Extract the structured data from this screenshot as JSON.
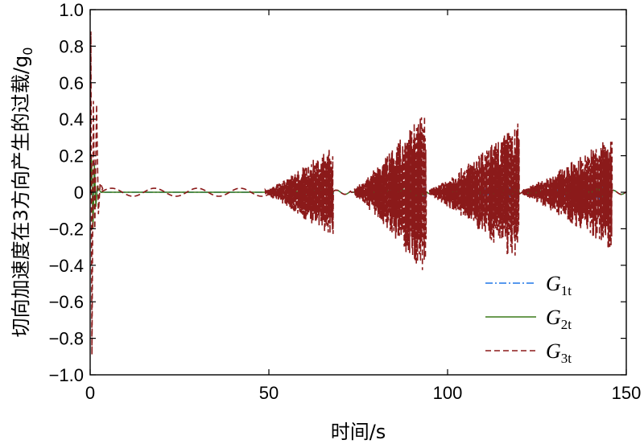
{
  "chart_data": {
    "type": "line",
    "xlabel": "时间/s",
    "ylabel": "切向加速度在3方向产生的过载/g",
    "ylabel_sub": "0",
    "xlim": [
      0,
      150
    ],
    "ylim": [
      -1.0,
      1.0
    ],
    "x_ticks": [
      0,
      50,
      100,
      150
    ],
    "x_tick_labels": [
      "0",
      "50",
      "100",
      "150"
    ],
    "y_ticks": [
      1.0,
      0.8,
      0.6,
      0.4,
      0.2,
      0,
      -0.2,
      -0.4,
      -0.6,
      -0.8,
      -1.0
    ],
    "y_tick_labels": [
      "1.0",
      "0.8",
      "0.6",
      "0.4",
      "0.2",
      "0",
      "−0.2",
      "−0.4",
      "−0.6",
      "−0.8",
      "−1.0"
    ],
    "grid": false,
    "legend": {
      "position": "bottom-right"
    },
    "series": [
      {
        "name": "G",
        "sub": "1t",
        "color": "#1f77e8",
        "dash": "dash-dot",
        "startup": {
          "t": [
            0,
            0.4,
            0.8,
            1.2,
            1.6,
            2.0,
            3.0
          ],
          "y": [
            0,
            0.12,
            -0.15,
            0.16,
            -0.06,
            0.02,
            0
          ]
        },
        "packets": [
          {
            "t_start": 50,
            "t_end": 68,
            "amp_end": 0.02
          },
          {
            "t_start": 75,
            "t_end": 94,
            "amp_end": 0.03
          },
          {
            "t_start": 96,
            "t_end": 120,
            "amp_end": 0.04
          },
          {
            "t_start": 122,
            "t_end": 145,
            "amp_end": 0.06
          }
        ],
        "baseline": 0
      },
      {
        "name": "G",
        "sub": "2t",
        "color": "#3a7a1a",
        "dash": "solid",
        "startup": {
          "t": [
            0,
            0.4,
            0.8,
            1.2,
            1.6,
            2.0,
            3.0
          ],
          "y": [
            0,
            0.18,
            -0.2,
            0.15,
            -0.08,
            0.03,
            0
          ]
        },
        "packets": [
          {
            "t_start": 50,
            "t_end": 68,
            "amp_end": 0.02
          },
          {
            "t_start": 75,
            "t_end": 94,
            "amp_end": 0.03
          },
          {
            "t_start": 96,
            "t_end": 120,
            "amp_end": 0.02
          },
          {
            "t_start": 122,
            "t_end": 145,
            "amp_end": 0.03
          }
        ],
        "baseline": 0
      },
      {
        "name": "G",
        "sub": "3t",
        "color": "#8b1a1a",
        "dash": "dashed",
        "startup": {
          "t": [
            0,
            0.2,
            0.5,
            0.9,
            1.3,
            1.8,
            2.3,
            2.8,
            3.5
          ],
          "y": [
            0,
            0.88,
            -0.89,
            0.5,
            -0.2,
            0.48,
            -0.12,
            0.05,
            0.02
          ]
        },
        "early_wave": {
          "t_start": 3,
          "t_end": 50,
          "amp": 0.022,
          "period": 12
        },
        "packets": [
          {
            "t_start": 49,
            "t_end": 68,
            "amp_end_pos": 0.26,
            "amp_end_neg": -0.27
          },
          {
            "t_start": 74,
            "t_end": 94,
            "amp_end_pos": 0.47,
            "amp_end_neg": -0.47
          },
          {
            "t_start": 95,
            "t_end": 120,
            "amp_end_pos": 0.39,
            "amp_end_neg": -0.4
          },
          {
            "t_start": 121,
            "t_end": 146,
            "amp_end_pos": 0.32,
            "amp_end_neg": -0.33
          }
        ],
        "baseline": 0
      }
    ]
  }
}
